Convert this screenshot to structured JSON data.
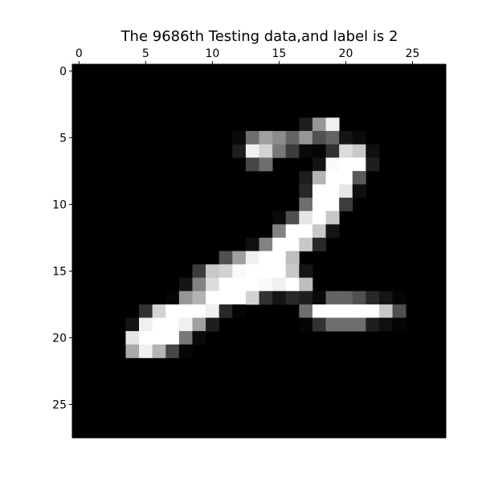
{
  "chart_data": {
    "type": "heatmap",
    "title": "The 9686th Testing data,and label is 2",
    "colormap": "gray",
    "x_ticks": [
      "0",
      "5",
      "10",
      "15",
      "20",
      "25"
    ],
    "y_ticks": [
      "0",
      "5",
      "10",
      "15",
      "20",
      "25"
    ],
    "xlim": [
      -0.5,
      27.5
    ],
    "ylim": [
      27.5,
      -0.5
    ],
    "xaxis_position": "top",
    "grid": false,
    "cells": [
      {
        "row": 4,
        "cols": [
          17,
          18,
          19
        ],
        "values": [
          30,
          150,
          240
        ]
      },
      {
        "row": 5,
        "cols": [
          12,
          13,
          14,
          15,
          16,
          17,
          18,
          19,
          20,
          21
        ],
        "values": [
          10,
          110,
          160,
          140,
          100,
          150,
          80,
          100,
          20,
          10
        ]
      },
      {
        "row": 6,
        "cols": [
          12,
          13,
          14,
          15,
          16,
          17,
          18,
          19,
          20,
          21,
          22
        ],
        "values": [
          30,
          240,
          210,
          120,
          60,
          10,
          5,
          50,
          220,
          200,
          15
        ]
      },
      {
        "row": 7,
        "cols": [
          13,
          14,
          18,
          19,
          20,
          21,
          22
        ],
        "values": [
          70,
          110,
          20,
          250,
          255,
          255,
          30
        ]
      },
      {
        "row": 8,
        "cols": [
          17,
          18,
          19,
          20,
          21
        ],
        "values": [
          30,
          180,
          255,
          255,
          90
        ]
      },
      {
        "row": 9,
        "cols": [
          17,
          18,
          19,
          20,
          21
        ],
        "values": [
          40,
          255,
          255,
          230,
          15
        ]
      },
      {
        "row": 10,
        "cols": [
          17,
          18,
          19,
          20
        ],
        "values": [
          110,
          255,
          255,
          60
        ]
      },
      {
        "row": 11,
        "cols": [
          15,
          16,
          17,
          18,
          19
        ],
        "values": [
          10,
          80,
          230,
          255,
          200
        ]
      },
      {
        "row": 12,
        "cols": [
          15,
          16,
          17,
          18,
          19
        ],
        "values": [
          130,
          255,
          255,
          200,
          20
        ]
      },
      {
        "row": 13,
        "cols": [
          13,
          14,
          15,
          16,
          17,
          18
        ],
        "values": [
          15,
          130,
          255,
          255,
          200,
          40
        ]
      },
      {
        "row": 14,
        "cols": [
          11,
          12,
          13,
          14,
          15,
          16
        ],
        "values": [
          80,
          160,
          240,
          255,
          255,
          190
        ]
      },
      {
        "row": 15,
        "cols": [
          9,
          10,
          11,
          12,
          13,
          14,
          15,
          16,
          17
        ],
        "values": [
          60,
          200,
          210,
          250,
          255,
          255,
          255,
          200,
          20
        ]
      },
      {
        "row": 16,
        "cols": [
          8,
          9,
          10,
          11,
          12,
          13,
          14,
          15,
          16,
          17
        ],
        "values": [
          20,
          130,
          220,
          255,
          255,
          255,
          250,
          240,
          255,
          190
        ]
      },
      {
        "row": 17,
        "cols": [
          7,
          8,
          9,
          10,
          11,
          12,
          13,
          14,
          15,
          16,
          17,
          18,
          19,
          20,
          21,
          22,
          23,
          24
        ],
        "values": [
          5,
          150,
          180,
          255,
          255,
          255,
          210,
          50,
          20,
          40,
          30,
          10,
          100,
          100,
          80,
          40,
          20,
          5
        ]
      },
      {
        "row": 18,
        "cols": [
          5,
          6,
          7,
          8,
          9,
          10,
          11,
          12,
          17,
          18,
          19,
          20,
          21,
          22,
          23,
          24
        ],
        "values": [
          50,
          210,
          255,
          255,
          255,
          240,
          40,
          5,
          110,
          255,
          255,
          255,
          255,
          255,
          200,
          80
        ]
      },
      {
        "row": 19,
        "cols": [
          4,
          5,
          6,
          7,
          8,
          9,
          10,
          17,
          18,
          19,
          20,
          21,
          22,
          23,
          24
        ],
        "values": [
          20,
          240,
          255,
          255,
          240,
          160,
          30,
          5,
          50,
          110,
          110,
          110,
          30,
          15,
          5
        ]
      },
      {
        "row": 20,
        "cols": [
          4,
          5,
          6,
          7,
          8,
          9
        ],
        "values": [
          230,
          255,
          255,
          255,
          120,
          10
        ]
      },
      {
        "row": 21,
        "cols": [
          4,
          5,
          6,
          7,
          8
        ],
        "values": [
          170,
          240,
          180,
          70,
          5
        ]
      }
    ]
  }
}
